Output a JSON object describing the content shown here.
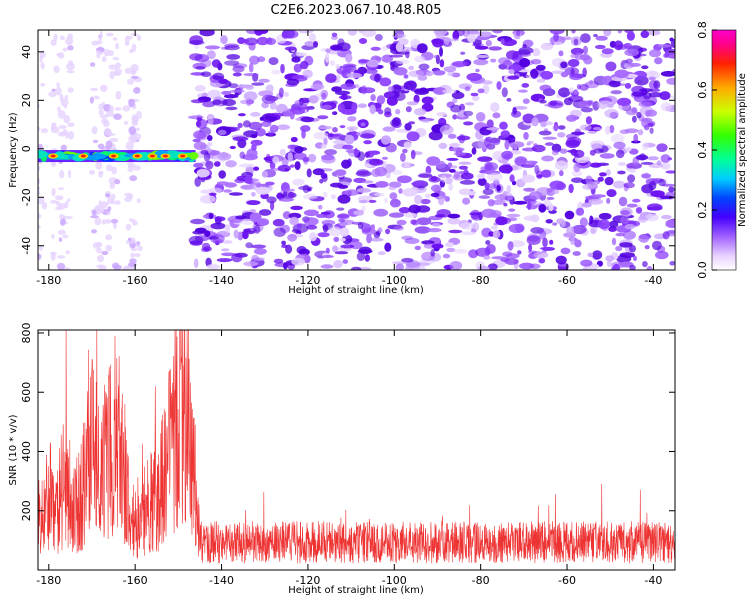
{
  "title": "C2E6.2023.067.10.48.R05",
  "chart_data": [
    {
      "type": "heatmap",
      "xlabel": "Height of straight line (km)",
      "ylabel": "Frequency (Hz)",
      "xlim": [
        -182.5,
        -35
      ],
      "ylim": [
        -50,
        49
      ],
      "xticks": [
        -180,
        -160,
        -140,
        -120,
        -100,
        -80,
        -60,
        -40
      ],
      "yticks": [
        -40,
        -20,
        0,
        20,
        40
      ],
      "xtick_labels": [
        "-180",
        "-160",
        "-140",
        "-120",
        "-100",
        "-80",
        "-60",
        "-40"
      ],
      "ytick_labels": [
        "-40",
        "-20",
        "0",
        "20",
        "40"
      ],
      "colorbar": {
        "label": "Normalized spectral amplitude",
        "range": [
          0,
          0.8
        ],
        "ticks": [
          0.0,
          0.2,
          0.4,
          0.6,
          0.8
        ],
        "tick_labels": [
          "0.0",
          "0.2",
          "0.4",
          "0.6",
          "0.8"
        ]
      },
      "features": {
        "strong_band_center_hz": -3,
        "strong_band_x_range": [
          -182.5,
          -146
        ],
        "gap_x_range": [
          -158,
          -146
        ],
        "noise_onset_x": -146
      }
    },
    {
      "type": "line",
      "xlabel": "Height of straight line (km)",
      "ylabel": "SNR (10 * v/v)",
      "xlim": [
        -182.5,
        -35
      ],
      "ylim": [
        0,
        810
      ],
      "xticks": [
        -180,
        -160,
        -140,
        -120,
        -100,
        -80,
        -60,
        -40
      ],
      "yticks": [
        200,
        400,
        600,
        800
      ],
      "xtick_labels": [
        "-180",
        "-160",
        "-140",
        "-120",
        "-100",
        "-80",
        "-60",
        "-40"
      ],
      "ytick_labels": [
        "200",
        "400",
        "600",
        "800"
      ],
      "color": "#ee3333",
      "envelope": [
        {
          "x": -182.5,
          "y": 150
        },
        {
          "x": -180,
          "y": 300
        },
        {
          "x": -178,
          "y": 250
        },
        {
          "x": -176,
          "y": 380
        },
        {
          "x": -174,
          "y": 230
        },
        {
          "x": -172,
          "y": 330
        },
        {
          "x": -170,
          "y": 480
        },
        {
          "x": -168,
          "y": 380
        },
        {
          "x": -166,
          "y": 460
        },
        {
          "x": -164.5,
          "y": 560
        },
        {
          "x": -163,
          "y": 420
        },
        {
          "x": -161,
          "y": 220
        },
        {
          "x": -159,
          "y": 160
        },
        {
          "x": -157,
          "y": 300
        },
        {
          "x": -155,
          "y": 280
        },
        {
          "x": -153,
          "y": 400
        },
        {
          "x": -151,
          "y": 560
        },
        {
          "x": -149.5,
          "y": 640
        },
        {
          "x": -148,
          "y": 600
        },
        {
          "x": -146.5,
          "y": 420
        },
        {
          "x": -145,
          "y": 110
        },
        {
          "x": -35,
          "y": 110
        }
      ]
    }
  ]
}
